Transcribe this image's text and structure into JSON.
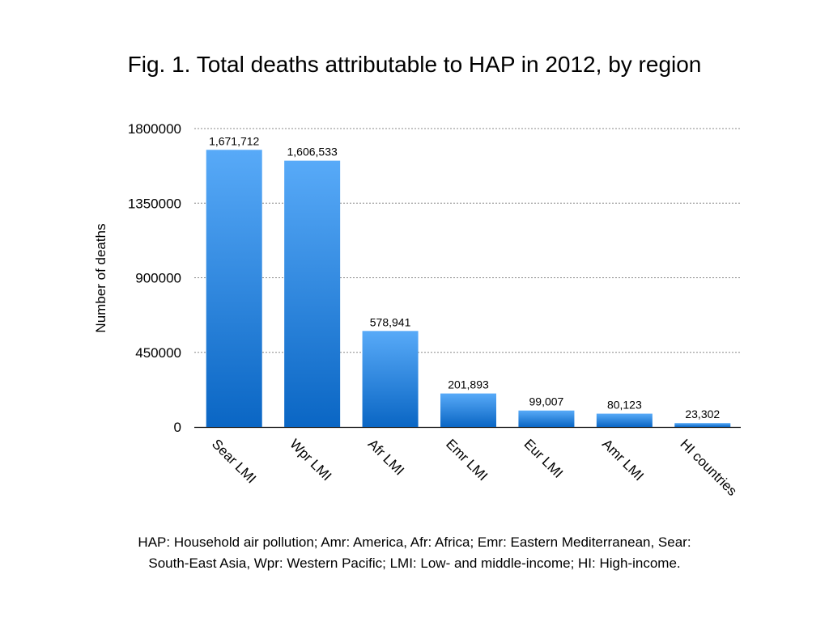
{
  "chart_data": {
    "type": "bar",
    "title": "Fig. 1. Total deaths attributable to HAP in 2012, by region",
    "xlabel": "",
    "ylabel": "Number of deaths",
    "categories": [
      "Sear LMI",
      "Wpr LMI",
      "Afr LMI",
      "Emr LMI",
      "Eur LMI",
      "Amr LMI",
      "HI countries"
    ],
    "values": [
      1671712,
      1606533,
      578941,
      201893,
      99007,
      80123,
      23302
    ],
    "data_labels": [
      "1,671,712",
      "1,606,533",
      "578,941",
      "201,893",
      "99,007",
      "80,123",
      "23,302"
    ],
    "ylim": [
      0,
      1800000
    ],
    "yticks": [
      0,
      450000,
      900000,
      1350000,
      1800000
    ],
    "ytick_labels": [
      "0",
      "450000",
      "900000",
      "1350000",
      "1800000"
    ],
    "grid": "horizontal dotted",
    "bar_color_top": "#58aaf8",
    "bar_color_bottom": "#0a66c4",
    "caption": [
      "HAP: Household air pollution; Amr: America, Afr: Africa; Emr: Eastern Mediterranean, Sear:",
      "South-East Asia, Wpr: Western Pacific; LMI: Low- and middle-income; HI: High-income."
    ]
  }
}
